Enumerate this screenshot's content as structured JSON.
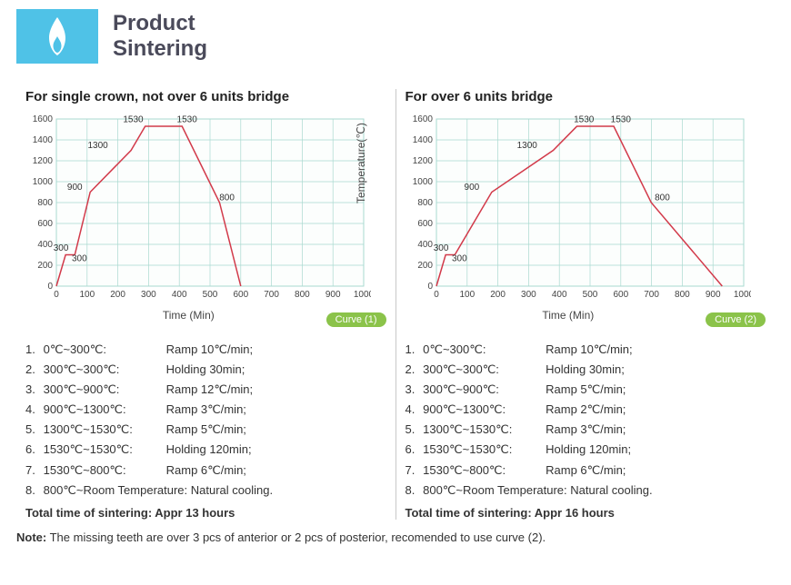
{
  "header": {
    "title_line1": "Product",
    "title_line2": "Sintering"
  },
  "chart_common": {
    "x_label": "Time (Min)",
    "y_label": "Temperature(℃)",
    "xlim": [
      0,
      1000
    ],
    "ylim": [
      0,
      1600
    ],
    "xtick_step": 100,
    "ytick_step": 200,
    "grid_color": "#a9d9d0",
    "background_color": "#fcfefd",
    "line_color": "#d23a4a",
    "line_width": 1.5,
    "axis_font_size": 10,
    "label_font_size": 12,
    "data_label_font_size": 10,
    "data_label_color": "#333333"
  },
  "panel1": {
    "heading": "For single crown, not over 6 units bridge",
    "curve_badge": "Curve (1)",
    "points_x": [
      0,
      30,
      60,
      110,
      243,
      289,
      409,
      531,
      600
    ],
    "points_y": [
      0,
      300,
      300,
      900,
      1300,
      1530,
      1530,
      800,
      0
    ],
    "data_labels": [
      {
        "text": "300",
        "x": 15,
        "y": 340
      },
      {
        "text": "300",
        "x": 75,
        "y": 240
      },
      {
        "text": "900",
        "x": 60,
        "y": 920
      },
      {
        "text": "1300",
        "x": 135,
        "y": 1320
      },
      {
        "text": "1530",
        "x": 250,
        "y": 1570
      },
      {
        "text": "1530",
        "x": 425,
        "y": 1570
      },
      {
        "text": "800",
        "x": 555,
        "y": 820
      }
    ],
    "steps": [
      {
        "n": "1.",
        "range": "0℃~300℃:",
        "desc": "Ramp 10℃/min;"
      },
      {
        "n": "2.",
        "range": "300℃~300℃:",
        "desc": "Holding 30min;"
      },
      {
        "n": "3.",
        "range": "300℃~900℃:",
        "desc": "Ramp 12℃/min;"
      },
      {
        "n": "4.",
        "range": "900℃~1300℃:",
        "desc": "Ramp 3℃/min;"
      },
      {
        "n": "5.",
        "range": "1300℃~1530℃:",
        "desc": "Ramp 5℃/min;"
      },
      {
        "n": "6.",
        "range": "1530℃~1530℃:",
        "desc": "Holding 120min;"
      },
      {
        "n": "7.",
        "range": "1530℃~800℃:",
        "desc": "Ramp 6℃/min;"
      },
      {
        "n": "8.",
        "range": "800℃~Room Temperature:",
        "desc": "Natural cooling."
      }
    ],
    "total": "Total time of sintering: Appr 13 hours"
  },
  "panel2": {
    "heading": "For over 6 units bridge",
    "curve_badge": "Curve (2)",
    "points_x": [
      0,
      30,
      60,
      180,
      380,
      457,
      577,
      699,
      930
    ],
    "points_y": [
      0,
      300,
      300,
      900,
      1300,
      1530,
      1530,
      800,
      0
    ],
    "data_labels": [
      {
        "text": "300",
        "x": 15,
        "y": 340
      },
      {
        "text": "300",
        "x": 75,
        "y": 240
      },
      {
        "text": "900",
        "x": 115,
        "y": 920
      },
      {
        "text": "1300",
        "x": 295,
        "y": 1320
      },
      {
        "text": "1530",
        "x": 480,
        "y": 1570
      },
      {
        "text": "1530",
        "x": 600,
        "y": 1570
      },
      {
        "text": "800",
        "x": 735,
        "y": 820
      }
    ],
    "steps": [
      {
        "n": "1.",
        "range": "0℃~300℃:",
        "desc": "Ramp 10℃/min;"
      },
      {
        "n": "2.",
        "range": "300℃~300℃:",
        "desc": "Holding 30min;"
      },
      {
        "n": "3.",
        "range": "300℃~900℃:",
        "desc": "Ramp 5℃/min;"
      },
      {
        "n": "4.",
        "range": "900℃~1300℃:",
        "desc": "Ramp 2℃/min;"
      },
      {
        "n": "5.",
        "range": "1300℃~1530℃:",
        "desc": "Ramp 3℃/min;"
      },
      {
        "n": "6.",
        "range": "1530℃~1530℃:",
        "desc": "Holding 120min;"
      },
      {
        "n": "7.",
        "range": "1530℃~800℃:",
        "desc": "Ramp 6℃/min;"
      },
      {
        "n": "8.",
        "range": "800℃~Room Temperature:",
        "desc": "Natural cooling."
      }
    ],
    "total": "Total time of sintering: Appr 16 hours"
  },
  "note_label": "Note:",
  "note_text": " The missing teeth are over 3 pcs of anterior or 2 pcs of posterior, recomended to use curve (2)."
}
